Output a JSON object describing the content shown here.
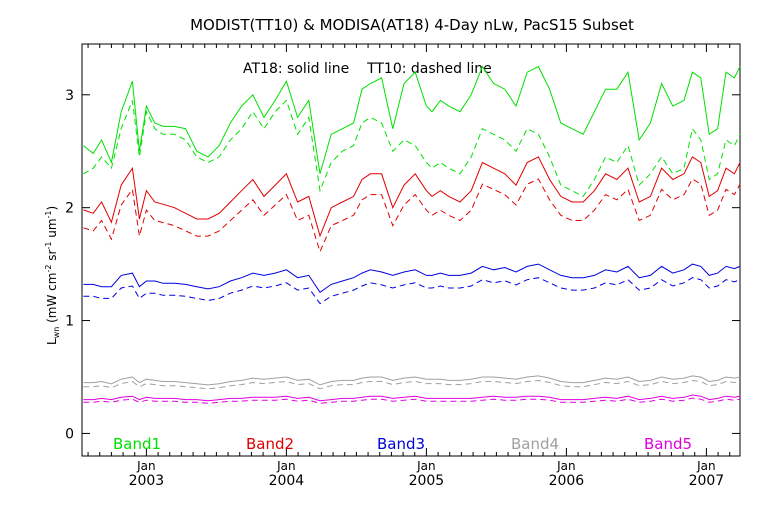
{
  "chart_data": {
    "type": "line",
    "title": "MODIST(TT10) & MODISA(AT18) 4-Day nLw, PacS15 Subset",
    "annotation": "AT18: solid line    TT10: dashed line",
    "ylabel": {
      "base": "L",
      "sub": "wn",
      "open": " (mW cm",
      "exp1": "-2",
      "mid1": " sr",
      "exp2": "-1",
      "mid2": " um",
      "exp3": "-1",
      "close": ")"
    },
    "xlim": [
      2002.54,
      2007.24
    ],
    "ylim": [
      -0.2,
      3.45
    ],
    "grid": false,
    "ytick_values": [
      0,
      1,
      2,
      3
    ],
    "ytick_labels": [
      "0",
      "1",
      "2",
      "3"
    ],
    "xtick_month_label": "Jan",
    "xtick_positions": [
      2003,
      2004,
      2005,
      2006,
      2007
    ],
    "xtick_year_labels": [
      "2003",
      "2004",
      "2005",
      "2006",
      "2007"
    ],
    "band_labels": [
      "Band1",
      "Band2",
      "Band3",
      "Band4",
      "Band5"
    ],
    "series": [
      {
        "name": "Band1",
        "color": "#00e000",
        "x": [
          2002.55,
          2002.62,
          2002.68,
          2002.75,
          2002.82,
          2002.9,
          2002.95,
          2003.0,
          2003.06,
          2003.12,
          2003.2,
          2003.28,
          2003.36,
          2003.44,
          2003.52,
          2003.6,
          2003.68,
          2003.76,
          2003.84,
          2003.92,
          2004.0,
          2004.08,
          2004.16,
          2004.24,
          2004.32,
          2004.4,
          2004.48,
          2004.54,
          2004.6,
          2004.68,
          2004.76,
          2004.84,
          2004.92,
          2005.0,
          2005.04,
          2005.1,
          2005.16,
          2005.24,
          2005.32,
          2005.4,
          2005.48,
          2005.56,
          2005.64,
          2005.72,
          2005.8,
          2005.88,
          2005.96,
          2006.04,
          2006.12,
          2006.2,
          2006.28,
          2006.36,
          2006.44,
          2006.52,
          2006.6,
          2006.68,
          2006.76,
          2006.84,
          2006.9,
          2006.96,
          2007.02,
          2007.08,
          2007.14,
          2007.2,
          2007.24
        ],
        "solid": [
          2.55,
          2.48,
          2.6,
          2.4,
          2.85,
          3.12,
          2.5,
          2.9,
          2.75,
          2.72,
          2.72,
          2.7,
          2.5,
          2.45,
          2.55,
          2.75,
          2.9,
          3.0,
          2.8,
          2.95,
          3.12,
          2.8,
          2.95,
          2.3,
          2.65,
          2.7,
          2.75,
          3.05,
          3.1,
          3.15,
          2.7,
          3.1,
          3.2,
          2.9,
          2.85,
          2.95,
          2.9,
          2.85,
          3.0,
          3.25,
          3.1,
          3.05,
          2.9,
          3.2,
          3.25,
          3.05,
          2.75,
          2.7,
          2.65,
          2.85,
          3.05,
          3.05,
          3.2,
          2.6,
          2.75,
          3.1,
          2.9,
          2.95,
          3.2,
          3.15,
          2.65,
          2.7,
          3.2,
          3.15,
          3.25
        ],
        "dashed": [
          2.3,
          2.35,
          2.45,
          2.35,
          2.7,
          2.95,
          2.45,
          2.85,
          2.7,
          2.65,
          2.65,
          2.6,
          2.45,
          2.4,
          2.45,
          2.6,
          2.7,
          2.85,
          2.7,
          2.85,
          2.95,
          2.65,
          2.8,
          2.15,
          2.4,
          2.5,
          2.55,
          2.75,
          2.8,
          2.75,
          2.5,
          2.6,
          2.55,
          2.4,
          2.35,
          2.4,
          2.35,
          2.3,
          2.45,
          2.7,
          2.65,
          2.6,
          2.5,
          2.7,
          2.65,
          2.45,
          2.2,
          2.15,
          2.1,
          2.25,
          2.45,
          2.4,
          2.55,
          2.2,
          2.3,
          2.45,
          2.3,
          2.35,
          2.7,
          2.6,
          2.25,
          2.3,
          2.6,
          2.55,
          2.65
        ]
      },
      {
        "name": "Band2",
        "color": "#e00000",
        "x": [
          2002.55,
          2002.62,
          2002.68,
          2002.75,
          2002.82,
          2002.9,
          2002.95,
          2003.0,
          2003.06,
          2003.12,
          2003.2,
          2003.28,
          2003.36,
          2003.44,
          2003.52,
          2003.6,
          2003.68,
          2003.76,
          2003.84,
          2003.92,
          2004.0,
          2004.08,
          2004.16,
          2004.24,
          2004.32,
          2004.4,
          2004.48,
          2004.54,
          2004.6,
          2004.68,
          2004.76,
          2004.84,
          2004.92,
          2005.0,
          2005.04,
          2005.1,
          2005.16,
          2005.24,
          2005.32,
          2005.4,
          2005.48,
          2005.56,
          2005.64,
          2005.72,
          2005.8,
          2005.88,
          2005.96,
          2006.04,
          2006.12,
          2006.2,
          2006.28,
          2006.36,
          2006.44,
          2006.52,
          2006.6,
          2006.68,
          2006.76,
          2006.84,
          2006.9,
          2006.96,
          2007.02,
          2007.08,
          2007.14,
          2007.2,
          2007.24
        ],
        "solid": [
          1.98,
          1.95,
          2.05,
          1.87,
          2.2,
          2.35,
          1.9,
          2.15,
          2.05,
          2.03,
          2.0,
          1.95,
          1.9,
          1.9,
          1.95,
          2.05,
          2.15,
          2.25,
          2.1,
          2.2,
          2.3,
          2.05,
          2.1,
          1.75,
          2.0,
          2.05,
          2.1,
          2.25,
          2.3,
          2.3,
          2.0,
          2.2,
          2.3,
          2.15,
          2.1,
          2.15,
          2.1,
          2.05,
          2.15,
          2.4,
          2.35,
          2.3,
          2.2,
          2.4,
          2.45,
          2.25,
          2.1,
          2.05,
          2.05,
          2.15,
          2.3,
          2.25,
          2.35,
          2.05,
          2.1,
          2.35,
          2.25,
          2.3,
          2.45,
          2.4,
          2.1,
          2.15,
          2.35,
          2.3,
          2.4
        ]
      },
      {
        "name": "Band3",
        "color": "#0000e0",
        "x": [
          2002.55,
          2002.62,
          2002.68,
          2002.75,
          2002.82,
          2002.9,
          2002.95,
          2003.0,
          2003.06,
          2003.12,
          2003.2,
          2003.28,
          2003.36,
          2003.44,
          2003.52,
          2003.6,
          2003.68,
          2003.76,
          2003.84,
          2003.92,
          2004.0,
          2004.08,
          2004.16,
          2004.24,
          2004.32,
          2004.4,
          2004.48,
          2004.54,
          2004.6,
          2004.68,
          2004.76,
          2004.84,
          2004.92,
          2005.0,
          2005.04,
          2005.1,
          2005.16,
          2005.24,
          2005.32,
          2005.4,
          2005.48,
          2005.56,
          2005.64,
          2005.72,
          2005.8,
          2005.88,
          2005.96,
          2006.04,
          2006.12,
          2006.2,
          2006.28,
          2006.36,
          2006.44,
          2006.52,
          2006.6,
          2006.68,
          2006.76,
          2006.84,
          2006.9,
          2006.96,
          2007.02,
          2007.08,
          2007.14,
          2007.2,
          2007.24
        ],
        "solid": [
          1.32,
          1.32,
          1.3,
          1.3,
          1.4,
          1.42,
          1.3,
          1.35,
          1.35,
          1.33,
          1.33,
          1.32,
          1.3,
          1.28,
          1.3,
          1.35,
          1.38,
          1.42,
          1.4,
          1.42,
          1.45,
          1.38,
          1.4,
          1.25,
          1.32,
          1.35,
          1.38,
          1.42,
          1.45,
          1.43,
          1.4,
          1.43,
          1.45,
          1.4,
          1.4,
          1.42,
          1.4,
          1.4,
          1.42,
          1.48,
          1.45,
          1.47,
          1.43,
          1.48,
          1.5,
          1.45,
          1.4,
          1.38,
          1.38,
          1.4,
          1.45,
          1.43,
          1.48,
          1.38,
          1.4,
          1.48,
          1.42,
          1.45,
          1.5,
          1.48,
          1.4,
          1.42,
          1.48,
          1.46,
          1.48
        ]
      },
      {
        "name": "Band4",
        "color": "#a0a0a0",
        "x": [
          2002.55,
          2002.62,
          2002.68,
          2002.75,
          2002.82,
          2002.9,
          2002.95,
          2003.0,
          2003.06,
          2003.12,
          2003.2,
          2003.28,
          2003.36,
          2003.44,
          2003.52,
          2003.6,
          2003.68,
          2003.76,
          2003.84,
          2003.92,
          2004.0,
          2004.08,
          2004.16,
          2004.24,
          2004.32,
          2004.4,
          2004.48,
          2004.54,
          2004.6,
          2004.68,
          2004.76,
          2004.84,
          2004.92,
          2005.0,
          2005.04,
          2005.1,
          2005.16,
          2005.24,
          2005.32,
          2005.4,
          2005.48,
          2005.56,
          2005.64,
          2005.72,
          2005.8,
          2005.88,
          2005.96,
          2006.04,
          2006.12,
          2006.2,
          2006.28,
          2006.36,
          2006.44,
          2006.52,
          2006.6,
          2006.68,
          2006.76,
          2006.84,
          2006.9,
          2006.96,
          2007.02,
          2007.08,
          2007.14,
          2007.2,
          2007.24
        ],
        "solid": [
          0.45,
          0.45,
          0.46,
          0.44,
          0.48,
          0.5,
          0.45,
          0.48,
          0.47,
          0.46,
          0.46,
          0.45,
          0.44,
          0.43,
          0.44,
          0.46,
          0.47,
          0.49,
          0.48,
          0.49,
          0.5,
          0.47,
          0.48,
          0.43,
          0.46,
          0.47,
          0.47,
          0.49,
          0.5,
          0.5,
          0.47,
          0.49,
          0.5,
          0.48,
          0.48,
          0.48,
          0.47,
          0.47,
          0.48,
          0.5,
          0.5,
          0.49,
          0.48,
          0.5,
          0.51,
          0.49,
          0.46,
          0.45,
          0.45,
          0.47,
          0.49,
          0.48,
          0.5,
          0.46,
          0.47,
          0.5,
          0.48,
          0.49,
          0.51,
          0.5,
          0.46,
          0.47,
          0.5,
          0.49,
          0.5
        ]
      },
      {
        "name": "Band5",
        "color": "#e000e0",
        "x": [
          2002.55,
          2002.62,
          2002.68,
          2002.75,
          2002.82,
          2002.9,
          2002.95,
          2003.0,
          2003.06,
          2003.12,
          2003.2,
          2003.28,
          2003.36,
          2003.44,
          2003.52,
          2003.6,
          2003.68,
          2003.76,
          2003.84,
          2003.92,
          2004.0,
          2004.08,
          2004.16,
          2004.24,
          2004.32,
          2004.4,
          2004.48,
          2004.54,
          2004.6,
          2004.68,
          2004.76,
          2004.84,
          2004.92,
          2005.0,
          2005.04,
          2005.1,
          2005.16,
          2005.24,
          2005.32,
          2005.4,
          2005.48,
          2005.56,
          2005.64,
          2005.72,
          2005.8,
          2005.88,
          2005.96,
          2006.04,
          2006.12,
          2006.2,
          2006.28,
          2006.36,
          2006.44,
          2006.52,
          2006.6,
          2006.68,
          2006.76,
          2006.84,
          2006.9,
          2006.96,
          2007.02,
          2007.08,
          2007.14,
          2007.2,
          2007.24
        ],
        "solid": [
          0.3,
          0.3,
          0.31,
          0.3,
          0.32,
          0.33,
          0.3,
          0.32,
          0.31,
          0.31,
          0.31,
          0.3,
          0.3,
          0.29,
          0.3,
          0.31,
          0.31,
          0.32,
          0.32,
          0.32,
          0.33,
          0.31,
          0.32,
          0.29,
          0.3,
          0.31,
          0.31,
          0.32,
          0.33,
          0.33,
          0.31,
          0.32,
          0.33,
          0.31,
          0.31,
          0.31,
          0.31,
          0.31,
          0.31,
          0.32,
          0.33,
          0.32,
          0.32,
          0.33,
          0.33,
          0.32,
          0.3,
          0.3,
          0.3,
          0.31,
          0.32,
          0.31,
          0.33,
          0.3,
          0.31,
          0.33,
          0.31,
          0.32,
          0.34,
          0.33,
          0.3,
          0.31,
          0.33,
          0.32,
          0.33
        ]
      }
    ]
  }
}
